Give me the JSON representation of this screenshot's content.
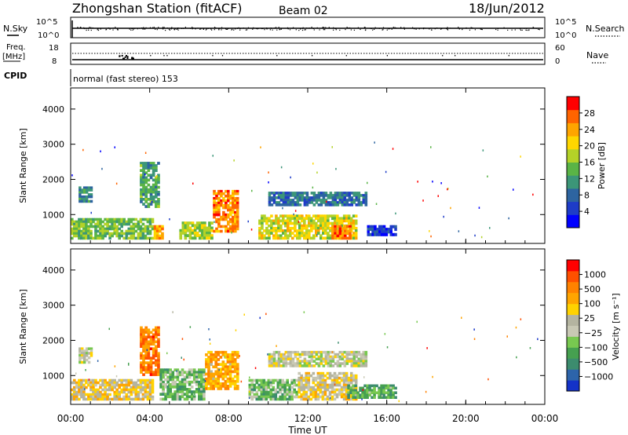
{
  "header": {
    "title": "Zhongshan Station (fitACF)",
    "beam": "Beam 02",
    "date": "18/Jun/2012",
    "cpid_value": "normal (fast stereo) 153"
  },
  "aux_panels": {
    "nsky_label": "N.Sky",
    "nsearch_label": "N.Search",
    "freq_label": "Freq.",
    "freq_unit": "[MHz]",
    "nave_label": "Nave",
    "cpid_label": "CPID",
    "nsky_ticks": [
      "10^5",
      "10^0"
    ],
    "nsearch_ticks": [
      "10^5",
      "10^0"
    ],
    "freq_ticks": [
      "18",
      "8"
    ],
    "nave_ticks": [
      "60",
      "0"
    ]
  },
  "power_panel": {
    "colorbar_label": "Power [dB]",
    "colorbar_ticks": [
      "28",
      "24",
      "20",
      "16",
      "12",
      "8",
      "4"
    ],
    "colors": [
      "#0000ff",
      "#1e3cc8",
      "#2d64a0",
      "#3c9678",
      "#5ab446",
      "#b4d228",
      "#ffd700",
      "#ffa500",
      "#ff6400",
      "#ff0000"
    ]
  },
  "velocity_panel": {
    "colorbar_label": "Velocity [m s⁻¹]",
    "colorbar_ticks": [
      "1000",
      "500",
      "100",
      "25",
      "−25",
      "−100",
      "−500",
      "−1000"
    ],
    "colors": [
      "#1432c8",
      "#2d64aa",
      "#3c8c6e",
      "#46a050",
      "#78c850",
      "#c8c8b4",
      "#b4b4a0",
      "#ffd200",
      "#ffa500",
      "#ff8200",
      "#ff5000",
      "#ff0000"
    ]
  },
  "x_axis": {
    "label": "Time UT",
    "ticks": [
      "00:00",
      "04:00",
      "08:00",
      "12:00",
      "16:00",
      "20:00",
      "00:00"
    ]
  },
  "chart_data": [
    {
      "type": "heatmap",
      "title": "Power",
      "xlabel": "Time UT",
      "ylabel": "Slant Range [km]",
      "x_range_hours": [
        0,
        24
      ],
      "ylim_km": [
        180,
        4600
      ],
      "y_ticks": [
        1000,
        2000,
        3000,
        4000
      ],
      "color_scale": "Power [dB]",
      "color_range": [
        0,
        30
      ],
      "regions": [
        {
          "t0": 0.0,
          "t1": 4.2,
          "r0": 300,
          "r1": 900,
          "value": 14
        },
        {
          "t0": 0.4,
          "t1": 1.1,
          "r0": 1350,
          "r1": 1800,
          "value": 9
        },
        {
          "t0": 3.5,
          "t1": 4.5,
          "r0": 1200,
          "r1": 2500,
          "value": 12
        },
        {
          "t0": 4.2,
          "t1": 4.7,
          "r0": 300,
          "r1": 700,
          "value": 22
        },
        {
          "t0": 5.5,
          "t1": 7.2,
          "r0": 300,
          "r1": 800,
          "value": 16
        },
        {
          "t0": 7.2,
          "t1": 8.5,
          "r0": 500,
          "r1": 1700,
          "value": 24
        },
        {
          "t0": 9.5,
          "t1": 14.5,
          "r0": 300,
          "r1": 1000,
          "value": 18
        },
        {
          "t0": 13.2,
          "t1": 14.2,
          "r0": 300,
          "r1": 700,
          "value": 25
        },
        {
          "t0": 10.0,
          "t1": 15.0,
          "r0": 1250,
          "r1": 1650,
          "value": 8
        },
        {
          "t0": 15.0,
          "t1": 16.5,
          "r0": 400,
          "r1": 700,
          "value": 5
        }
      ]
    },
    {
      "type": "heatmap",
      "title": "Velocity",
      "xlabel": "Time UT",
      "ylabel": "Slant Range [km]",
      "x_range_hours": [
        0,
        24
      ],
      "ylim_km": [
        180,
        4600
      ],
      "y_ticks": [
        1000,
        2000,
        3000,
        4000
      ],
      "color_scale": "Velocity [m s⁻¹]",
      "color_range": [
        -1000,
        1000
      ],
      "regions": [
        {
          "t0": 0.0,
          "t1": 4.2,
          "r0": 300,
          "r1": 900,
          "value": 200
        },
        {
          "t0": 0.4,
          "t1": 1.1,
          "r0": 1350,
          "r1": 1800,
          "value": 0
        },
        {
          "t0": 3.5,
          "t1": 4.5,
          "r0": 1000,
          "r1": 2400,
          "value": 600
        },
        {
          "t0": 4.5,
          "t1": 6.8,
          "r0": 300,
          "r1": 1200,
          "value": -300
        },
        {
          "t0": 6.8,
          "t1": 8.5,
          "r0": 600,
          "r1": 1700,
          "value": 400
        },
        {
          "t0": 9.0,
          "t1": 11.5,
          "r0": 300,
          "r1": 900,
          "value": -300
        },
        {
          "t0": 11.5,
          "t1": 14.5,
          "r0": 300,
          "r1": 1100,
          "value": 150
        },
        {
          "t0": 10.0,
          "t1": 15.0,
          "r0": 1250,
          "r1": 1700,
          "value": 0
        },
        {
          "t0": 14.0,
          "t1": 16.5,
          "r0": 350,
          "r1": 750,
          "value": -400
        }
      ]
    },
    {
      "type": "line",
      "title": "N.Sky / N.Search",
      "x_range_hours": [
        0,
        24
      ],
      "y_ticks": [
        "10^0",
        "10^5"
      ],
      "series": [
        {
          "values": [
            3.2,
            3.3,
            3.3,
            3.2,
            3.3,
            3.3,
            3.2,
            3.3,
            3.3,
            3.2,
            3.3,
            3.3,
            3.2
          ]
        }
      ]
    },
    {
      "type": "line",
      "title": "Freq. / Nave",
      "x_range_hours": [
        0,
        24
      ],
      "y_ticks_freq": [
        8,
        18
      ],
      "y_ticks_nave": [
        0,
        60
      ],
      "series": [
        {
          "values": [
            12,
            12,
            12,
            12,
            12,
            12,
            12,
            12,
            12,
            12,
            12,
            12,
            12
          ]
        }
      ]
    }
  ]
}
